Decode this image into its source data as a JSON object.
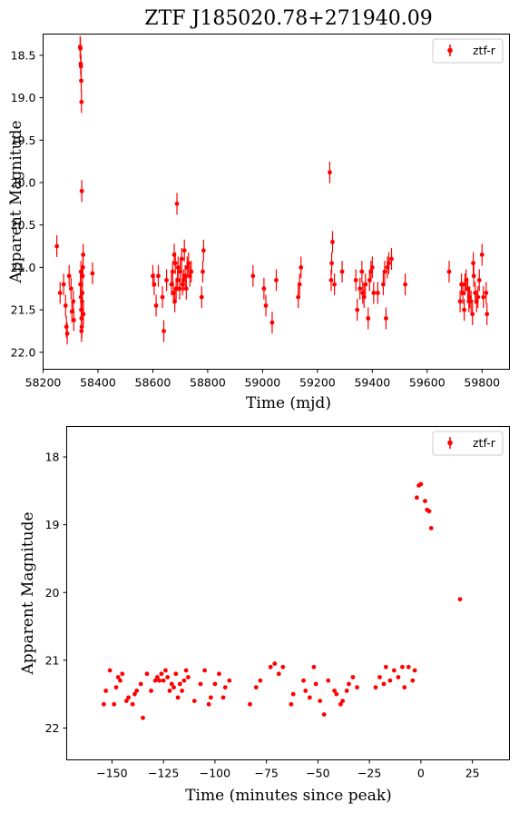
{
  "figure_title": "ZTF J185020.78+271940.09",
  "colors": {
    "series": "#ff0000"
  },
  "chart_data": [
    {
      "type": "scatter",
      "title": "ZTF J185020.78+271940.09",
      "xlabel": "Time (mjd)",
      "ylabel": "Apparent Magnitude",
      "xlim": [
        58200,
        59900
      ],
      "ylim": [
        22.2,
        18.25
      ],
      "xticks": [
        58200,
        58400,
        58600,
        58800,
        59000,
        59200,
        59400,
        59600,
        59800
      ],
      "yticks": [
        18.5,
        19.0,
        19.5,
        20.0,
        20.5,
        21.0,
        21.5,
        22.0
      ],
      "ytick_labels": [
        "18.5",
        "19.0",
        "19.5",
        "20.0",
        "20.5",
        "21.0",
        "21.5",
        "22.0"
      ],
      "legend": {
        "label": "ztf-r",
        "position": "top-right"
      },
      "series": [
        {
          "name": "ztf-r",
          "color": "#ff0000",
          "points": [
            [
              58250,
              20.75
            ],
            [
              58262,
              21.3
            ],
            [
              58275,
              21.2
            ],
            [
              58282,
              21.45
            ],
            [
              58285,
              21.7
            ],
            [
              58288,
              21.78
            ],
            [
              58295,
              21.1
            ],
            [
              58302,
              21.25
            ],
            [
              58305,
              21.52
            ],
            [
              58310,
              21.4
            ],
            [
              58312,
              21.62
            ],
            [
              58335,
              18.4
            ],
            [
              58336,
              18.42
            ],
            [
              58337,
              18.6
            ],
            [
              58338,
              18.63
            ],
            [
              58339,
              18.8
            ],
            [
              58340,
              19.05
            ],
            [
              58341,
              20.1
            ],
            [
              58336,
              21.2
            ],
            [
              58338,
              21.35
            ],
            [
              58339,
              21.5
            ],
            [
              58340,
              21.6
            ],
            [
              58341,
              21.7
            ],
            [
              58342,
              21.4
            ],
            [
              58343,
              21.3
            ],
            [
              58344,
              21.1
            ],
            [
              58345,
              21.0
            ],
            [
              58346,
              20.85
            ],
            [
              58340,
              21.75
            ],
            [
              58338,
              21.05
            ],
            [
              58347,
              21.55
            ],
            [
              58380,
              21.07
            ],
            [
              58600,
              21.1
            ],
            [
              58605,
              21.2
            ],
            [
              58612,
              21.45
            ],
            [
              58620,
              21.1
            ],
            [
              58635,
              21.35
            ],
            [
              58640,
              21.75
            ],
            [
              58650,
              21.15
            ],
            [
              58668,
              21.2
            ],
            [
              58672,
              21.05
            ],
            [
              58675,
              21.3
            ],
            [
              58678,
              20.85
            ],
            [
              58680,
              21.4
            ],
            [
              58682,
              20.95
            ],
            [
              58685,
              21.25
            ],
            [
              58688,
              20.25
            ],
            [
              58690,
              21.15
            ],
            [
              58692,
              21.0
            ],
            [
              58698,
              21.25
            ],
            [
              58700,
              21.05
            ],
            [
              58705,
              20.9
            ],
            [
              58708,
              21.2
            ],
            [
              58712,
              21.15
            ],
            [
              58715,
              20.8
            ],
            [
              58718,
              21.1
            ],
            [
              58722,
              21.25
            ],
            [
              58725,
              21.0
            ],
            [
              58730,
              20.95
            ],
            [
              58735,
              21.1
            ],
            [
              58740,
              21.05
            ],
            [
              58778,
              21.35
            ],
            [
              58782,
              21.05
            ],
            [
              58785,
              20.8
            ],
            [
              58965,
              21.1
            ],
            [
              59005,
              21.25
            ],
            [
              59012,
              21.45
            ],
            [
              59035,
              21.65
            ],
            [
              59050,
              21.15
            ],
            [
              59130,
              21.35
            ],
            [
              59135,
              21.2
            ],
            [
              59140,
              21.0
            ],
            [
              59245,
              19.88
            ],
            [
              59250,
              21.15
            ],
            [
              59252,
              20.95
            ],
            [
              59255,
              20.7
            ],
            [
              59262,
              21.2
            ],
            [
              59290,
              21.05
            ],
            [
              59340,
              21.15
            ],
            [
              59345,
              21.5
            ],
            [
              59355,
              21.25
            ],
            [
              59362,
              21.05
            ],
            [
              59365,
              21.3
            ],
            [
              59370,
              21.35
            ],
            [
              59375,
              21.2
            ],
            [
              59385,
              21.6
            ],
            [
              59390,
              21.15
            ],
            [
              59395,
              21.05
            ],
            [
              59400,
              21.0
            ],
            [
              59405,
              21.3
            ],
            [
              59420,
              21.3
            ],
            [
              59440,
              21.2
            ],
            [
              59445,
              21.05
            ],
            [
              59450,
              21.6
            ],
            [
              59455,
              21.0
            ],
            [
              59460,
              20.95
            ],
            [
              59470,
              20.9
            ],
            [
              59520,
              21.2
            ],
            [
              59680,
              21.05
            ],
            [
              59720,
              21.4
            ],
            [
              59725,
              21.2
            ],
            [
              59730,
              21.3
            ],
            [
              59735,
              21.5
            ],
            [
              59738,
              21.2
            ],
            [
              59742,
              21.15
            ],
            [
              59748,
              21.25
            ],
            [
              59752,
              21.4
            ],
            [
              59755,
              21.35
            ],
            [
              59760,
              21.4
            ],
            [
              59765,
              21.55
            ],
            [
              59768,
              20.95
            ],
            [
              59770,
              21.1
            ],
            [
              59775,
              21.3
            ],
            [
              59780,
              21.4
            ],
            [
              59785,
              21.35
            ],
            [
              59790,
              21.15
            ],
            [
              59800,
              20.85
            ],
            [
              59805,
              21.35
            ],
            [
              59815,
              21.3
            ],
            [
              59818,
              21.55
            ]
          ]
        }
      ]
    },
    {
      "type": "scatter",
      "xlabel": "Time (minutes since peak)",
      "ylabel": "Apparent Magnitude",
      "xlim": [
        -172,
        43
      ],
      "ylim": [
        22.47,
        17.55
      ],
      "xticks": [
        -150,
        -125,
        -100,
        -75,
        -50,
        -25,
        0,
        25
      ],
      "yticks": [
        18,
        19,
        20,
        21,
        22
      ],
      "ytick_labels": [
        "18",
        "19",
        "20",
        "21",
        "22"
      ],
      "legend": {
        "label": "ztf-r",
        "position": "top-right"
      },
      "series": [
        {
          "name": "ztf-r",
          "color": "#ff0000",
          "points": [
            [
              -154,
              21.65
            ],
            [
              -153,
              21.45
            ],
            [
              -151,
              21.15
            ],
            [
              -149,
              21.65
            ],
            [
              -148,
              21.4
            ],
            [
              -147,
              21.25
            ],
            [
              -146,
              21.3
            ],
            [
              -145,
              21.2
            ],
            [
              -143,
              21.6
            ],
            [
              -142,
              21.55
            ],
            [
              -140,
              21.65
            ],
            [
              -139,
              21.5
            ],
            [
              -138,
              21.45
            ],
            [
              -136,
              21.35
            ],
            [
              -135,
              21.85
            ],
            [
              -133,
              21.2
            ],
            [
              -131,
              21.45
            ],
            [
              -129,
              21.3
            ],
            [
              -128,
              21.25
            ],
            [
              -127,
              21.3
            ],
            [
              -126,
              21.2
            ],
            [
              -125,
              21.3
            ],
            [
              -124,
              21.15
            ],
            [
              -123,
              21.25
            ],
            [
              -122,
              21.45
            ],
            [
              -121,
              21.35
            ],
            [
              -120,
              21.4
            ],
            [
              -119,
              21.2
            ],
            [
              -118,
              21.55
            ],
            [
              -117,
              21.35
            ],
            [
              -116,
              21.45
            ],
            [
              -115,
              21.3
            ],
            [
              -114,
              21.15
            ],
            [
              -113,
              21.25
            ],
            [
              -110,
              21.6
            ],
            [
              -107,
              21.35
            ],
            [
              -105,
              21.15
            ],
            [
              -103,
              21.65
            ],
            [
              -102,
              21.55
            ],
            [
              -100,
              21.35
            ],
            [
              -98,
              21.2
            ],
            [
              -96,
              21.55
            ],
            [
              -95,
              21.4
            ],
            [
              -93,
              21.3
            ],
            [
              -83,
              21.65
            ],
            [
              -80,
              21.4
            ],
            [
              -78,
              21.3
            ],
            [
              -73,
              21.1
            ],
            [
              -71,
              21.05
            ],
            [
              -69,
              21.2
            ],
            [
              -67,
              21.1
            ],
            [
              -63,
              21.65
            ],
            [
              -62,
              21.5
            ],
            [
              -57,
              21.3
            ],
            [
              -56,
              21.45
            ],
            [
              -54,
              21.55
            ],
            [
              -52,
              21.1
            ],
            [
              -51,
              21.35
            ],
            [
              -49,
              21.6
            ],
            [
              -47,
              21.8
            ],
            [
              -45,
              21.3
            ],
            [
              -42,
              21.45
            ],
            [
              -41,
              21.5
            ],
            [
              -39,
              21.65
            ],
            [
              -38,
              21.6
            ],
            [
              -36,
              21.45
            ],
            [
              -35,
              21.35
            ],
            [
              -33,
              21.25
            ],
            [
              -31,
              21.4
            ],
            [
              -22,
              21.4
            ],
            [
              -20,
              21.25
            ],
            [
              -18,
              21.35
            ],
            [
              -17,
              21.1
            ],
            [
              -15,
              21.3
            ],
            [
              -13,
              21.15
            ],
            [
              -11,
              21.25
            ],
            [
              -9,
              21.1
            ],
            [
              -8,
              21.4
            ],
            [
              -6,
              21.1
            ],
            [
              -4,
              21.3
            ],
            [
              -3,
              21.15
            ],
            [
              -2,
              18.6
            ],
            [
              -1,
              18.42
            ],
            [
              0,
              18.4
            ],
            [
              2,
              18.65
            ],
            [
              3,
              18.78
            ],
            [
              4,
              18.8
            ],
            [
              5,
              19.05
            ],
            [
              19,
              20.1
            ]
          ]
        }
      ]
    }
  ]
}
